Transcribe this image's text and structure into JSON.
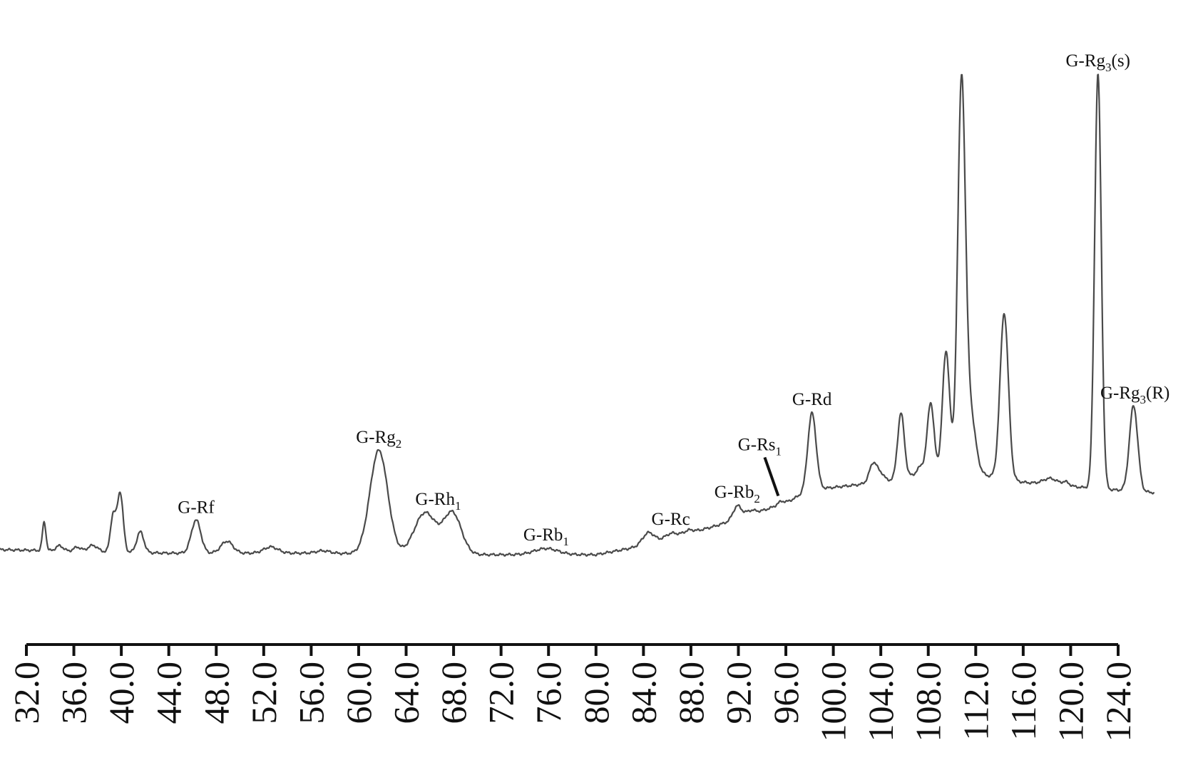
{
  "chart_data": {
    "type": "line",
    "title": "",
    "xlabel": "",
    "ylabel": "",
    "xlim": [
      32.0,
      124.0
    ],
    "ylim": [
      0,
      100
    ],
    "grid": false,
    "legend": "none",
    "x_ticks": [
      "32.0",
      "36.0",
      "40.0",
      "44.0",
      "48.0",
      "52.0",
      "56.0",
      "60.0",
      "64.0",
      "68.0",
      "72.0",
      "76.0",
      "80.0",
      "84.0",
      "88.0",
      "92.0",
      "96.0",
      "100.0",
      "104.0",
      "108.0",
      "112.0",
      "116.0",
      "120.0",
      "124.0"
    ],
    "series": [
      {
        "color": "#4a4a4a",
        "baseline": [
          [
            29.3,
            1.0
          ],
          [
            44.0,
            0.3
          ],
          [
            55.0,
            0.3
          ],
          [
            70.0,
            0.0
          ],
          [
            80.0,
            0.0
          ],
          [
            83.5,
            1.5
          ],
          [
            90.0,
            5.5
          ],
          [
            96.0,
            10.0
          ],
          [
            98.0,
            12.5
          ],
          [
            104.0,
            14.0
          ],
          [
            107.0,
            15.5
          ],
          [
            110.0,
            16.5
          ],
          [
            116.0,
            14.0
          ],
          [
            122.0,
            12.8
          ],
          [
            127.0,
            12.0
          ]
        ],
        "peaks": [
          {
            "x": 33.5,
            "height": 5.5,
            "width": 0.15
          },
          {
            "x": 34.8,
            "height": 1.0,
            "width": 0.3
          },
          {
            "x": 36.3,
            "height": 0.8,
            "width": 0.3
          },
          {
            "x": 37.6,
            "height": 1.2,
            "width": 0.4
          },
          {
            "x": 39.3,
            "height": 7.0,
            "width": 0.22
          },
          {
            "x": 39.9,
            "height": 11.5,
            "width": 0.25
          },
          {
            "x": 41.6,
            "height": 4.0,
            "width": 0.3
          },
          {
            "x": 46.3,
            "height": 6.4,
            "width": 0.4
          },
          {
            "x": 48.9,
            "height": 2.3,
            "width": 0.5
          },
          {
            "x": 52.6,
            "height": 1.2,
            "width": 0.6
          },
          {
            "x": 57.0,
            "height": 0.5,
            "width": 0.6
          },
          {
            "x": 61.7,
            "height": 20.0,
            "width": 0.75
          },
          {
            "x": 65.6,
            "height": 8.0,
            "width": 0.9
          },
          {
            "x": 67.9,
            "height": 8.0,
            "width": 0.75
          },
          {
            "x": 75.8,
            "height": 1.2,
            "width": 1.0
          },
          {
            "x": 84.4,
            "height": 2.2,
            "width": 0.5
          },
          {
            "x": 86.3,
            "height": 0.9,
            "width": 0.5
          },
          {
            "x": 87.8,
            "height": 0.6,
            "width": 0.4
          },
          {
            "x": 91.9,
            "height": 2.5,
            "width": 0.35
          },
          {
            "x": 93.0,
            "height": 0.8,
            "width": 0.4
          },
          {
            "x": 95.6,
            "height": 0.6,
            "width": 0.3
          },
          {
            "x": 98.2,
            "height": 14.8,
            "width": 0.35
          },
          {
            "x": 103.4,
            "height": 4.0,
            "width": 0.35
          },
          {
            "x": 104.1,
            "height": 1.2,
            "width": 0.25
          },
          {
            "x": 105.7,
            "height": 12.5,
            "width": 0.28
          },
          {
            "x": 107.4,
            "height": 1.5,
            "width": 0.3
          },
          {
            "x": 108.2,
            "height": 13.5,
            "width": 0.28
          },
          {
            "x": 109.5,
            "height": 23.0,
            "width": 0.3
          },
          {
            "x": 110.8,
            "height": 73.0,
            "width": 0.32
          },
          {
            "x": 111.5,
            "height": 12.0,
            "width": 0.45
          },
          {
            "x": 114.4,
            "height": 32.0,
            "width": 0.35
          },
          {
            "x": 118.3,
            "height": 1.2,
            "width": 0.6
          },
          {
            "x": 119.6,
            "height": 0.7,
            "width": 0.3
          },
          {
            "x": 122.3,
            "height": 80.0,
            "width": 0.28
          },
          {
            "x": 125.3,
            "height": 16.5,
            "width": 0.35
          }
        ]
      }
    ],
    "annotations": [
      {
        "text": "G-Rf",
        "x": 46.3
      },
      {
        "text": "G-Rg",
        "sub": "2",
        "x": 61.7
      },
      {
        "text": "G-Rh",
        "sub": "1",
        "x": 66.7
      },
      {
        "text": "G-Rb",
        "sub": "1",
        "x": 75.8
      },
      {
        "text": "G-Rc",
        "x": 86.3
      },
      {
        "text": "G-Rb",
        "sub": "2",
        "x": 91.9
      },
      {
        "text": "G-Rs",
        "sub": "1",
        "x": 95.6
      },
      {
        "text": "G-Rd",
        "x": 98.2
      },
      {
        "text": "G-Rg",
        "sub": "3",
        "tail": "(s)",
        "x": 122.3
      },
      {
        "text": "G-Rg",
        "sub": "3",
        "tail": "(R)",
        "x": 125.3
      }
    ]
  }
}
